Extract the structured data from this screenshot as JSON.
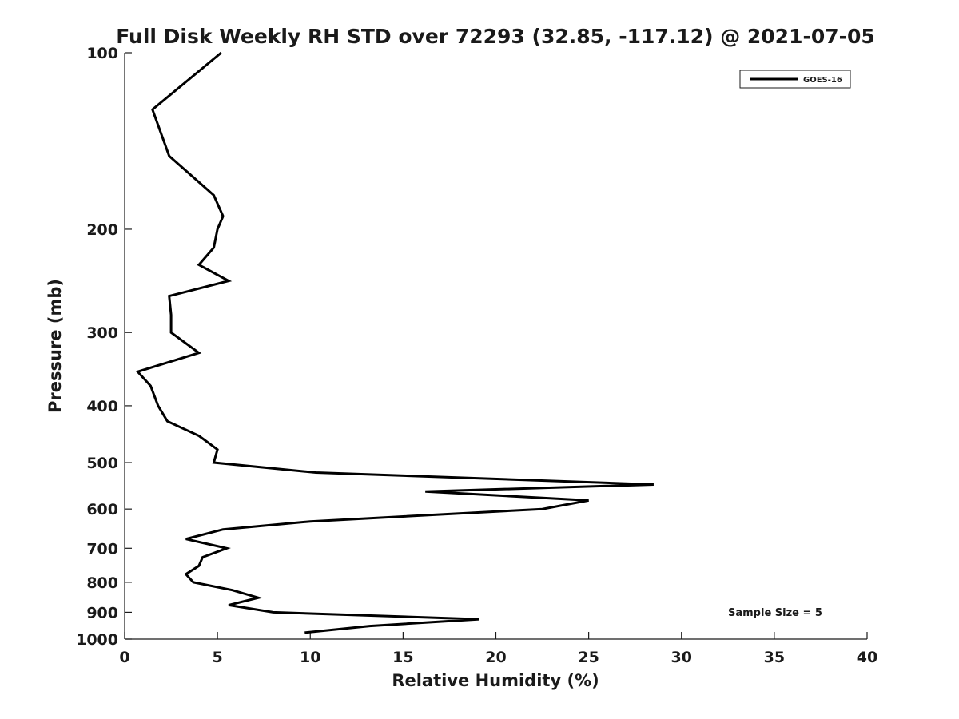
{
  "chart_data": {
    "type": "line",
    "title": "Full Disk Weekly RH STD over 72293 (32.85, -117.12) @ 2021-07-05",
    "xlabel": "Relative Humidity (%)",
    "ylabel": "Pressure (mb)",
    "xlim": [
      0,
      40
    ],
    "ylim": [
      100,
      1000
    ],
    "y_scale": "log",
    "y_reversed": true,
    "x_ticks": [
      0,
      5,
      10,
      15,
      20,
      25,
      30,
      35,
      40
    ],
    "x_tick_labels": [
      "0",
      "5",
      "10",
      "15",
      "20",
      "25",
      "30",
      "35",
      "40"
    ],
    "y_ticks": [
      100,
      200,
      300,
      400,
      500,
      600,
      700,
      800,
      900,
      1000
    ],
    "y_tick_labels": [
      "100",
      "200",
      "300",
      "400",
      "500",
      "600",
      "700",
      "800",
      "900",
      "1000"
    ],
    "grid": false,
    "legend": {
      "position": "top-right",
      "entries": [
        "GOES-16"
      ]
    },
    "annotation": "Sample Size = 5",
    "line_color": "#000000",
    "series": [
      {
        "name": "GOES-16",
        "points": [
          {
            "x": 5.2,
            "p": 100
          },
          {
            "x": 1.5,
            "p": 125
          },
          {
            "x": 2.4,
            "p": 150
          },
          {
            "x": 4.8,
            "p": 175
          },
          {
            "x": 5.3,
            "p": 190
          },
          {
            "x": 5.0,
            "p": 200
          },
          {
            "x": 4.8,
            "p": 215
          },
          {
            "x": 4.0,
            "p": 230
          },
          {
            "x": 5.6,
            "p": 245
          },
          {
            "x": 2.4,
            "p": 260
          },
          {
            "x": 2.5,
            "p": 280
          },
          {
            "x": 2.5,
            "p": 300
          },
          {
            "x": 4.0,
            "p": 325
          },
          {
            "x": 0.7,
            "p": 350
          },
          {
            "x": 1.4,
            "p": 370
          },
          {
            "x": 1.8,
            "p": 400
          },
          {
            "x": 2.3,
            "p": 425
          },
          {
            "x": 4.0,
            "p": 450
          },
          {
            "x": 5.0,
            "p": 475
          },
          {
            "x": 4.8,
            "p": 500
          },
          {
            "x": 10.3,
            "p": 520
          },
          {
            "x": 28.5,
            "p": 545
          },
          {
            "x": 16.2,
            "p": 560
          },
          {
            "x": 25.0,
            "p": 580
          },
          {
            "x": 22.5,
            "p": 600
          },
          {
            "x": 10.0,
            "p": 630
          },
          {
            "x": 5.3,
            "p": 650
          },
          {
            "x": 3.3,
            "p": 675
          },
          {
            "x": 5.5,
            "p": 700
          },
          {
            "x": 4.2,
            "p": 725
          },
          {
            "x": 4.0,
            "p": 750
          },
          {
            "x": 3.3,
            "p": 775
          },
          {
            "x": 3.7,
            "p": 800
          },
          {
            "x": 5.8,
            "p": 825
          },
          {
            "x": 7.2,
            "p": 850
          },
          {
            "x": 5.6,
            "p": 875
          },
          {
            "x": 8.0,
            "p": 900
          },
          {
            "x": 19.1,
            "p": 925
          },
          {
            "x": 13.2,
            "p": 950
          },
          {
            "x": 9.7,
            "p": 975
          }
        ]
      }
    ]
  }
}
